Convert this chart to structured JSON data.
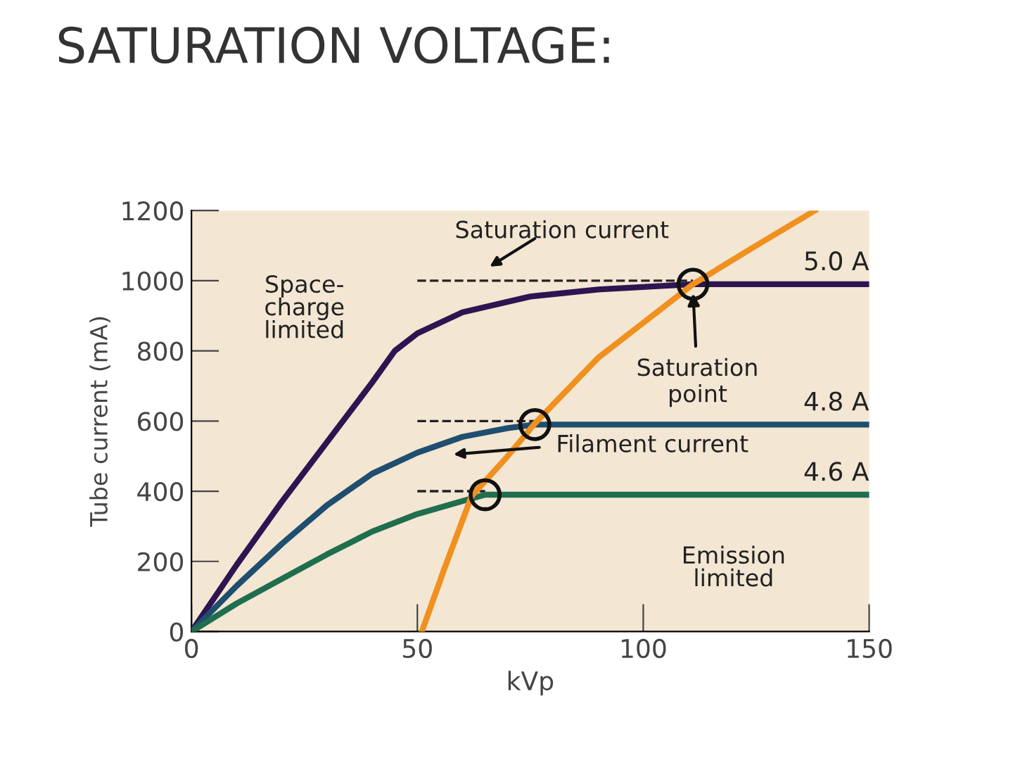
{
  "chart_data": {
    "type": "line",
    "title": "SATURATION VOLTAGE:",
    "xlabel": "kVp",
    "ylabel": "Tube current (mA)",
    "xlim": [
      0,
      150
    ],
    "ylim": [
      0,
      1200
    ],
    "xticks": [
      0,
      50,
      100,
      150
    ],
    "yticks": [
      0,
      200,
      400,
      600,
      800,
      1000,
      1200
    ],
    "grid": false,
    "legend": false,
    "line_style": "solid",
    "marker": "none",
    "series": [
      {
        "name": "5.0 A",
        "color": "#2e1450",
        "x": [
          0,
          10,
          20,
          30,
          40,
          45,
          50,
          60,
          75,
          90,
          111,
          150
        ],
        "values": [
          0,
          190,
          370,
          540,
          710,
          800,
          850,
          910,
          955,
          975,
          990,
          990
        ]
      },
      {
        "name": "4.8 A",
        "color": "#1f4e6e",
        "x": [
          0,
          10,
          20,
          30,
          40,
          50,
          60,
          70,
          76,
          150
        ],
        "values": [
          0,
          130,
          250,
          360,
          450,
          510,
          555,
          580,
          590,
          590
        ]
      },
      {
        "name": "4.6 A",
        "color": "#1f6e4e",
        "x": [
          0,
          10,
          20,
          30,
          40,
          50,
          60,
          65,
          150
        ],
        "values": [
          0,
          80,
          150,
          220,
          285,
          335,
          372,
          390,
          390
        ]
      },
      {
        "color": "#f0901e",
        "x": [
          51,
          56,
          62,
          70,
          76,
          90,
          100,
          111,
          125,
          138
        ],
        "values": [
          0,
          180,
          386,
          500,
          593,
          780,
          880,
          990,
          1100,
          1200
        ]
      },
      {
        "color": "#222222",
        "line_style": "dashed",
        "x": [
          50,
          111
        ],
        "values": [
          1000,
          1000
        ]
      },
      {
        "color": "#222222",
        "line_style": "dashed",
        "x": [
          50,
          76
        ],
        "values": [
          600,
          600
        ]
      },
      {
        "color": "#222222",
        "line_style": "dashed",
        "x": [
          50,
          65
        ],
        "values": [
          400,
          400
        ]
      },
      {
        "type": "scatter",
        "color": "#111111",
        "marker": "circle",
        "x": [
          65,
          76,
          111
        ],
        "values": [
          390,
          590,
          990
        ]
      }
    ],
    "annotations": [
      "Saturation current",
      "Space-\ncharge\nlimited",
      {
        "text": "Saturation\npoint",
        "x": 111,
        "y": 975
      },
      "Filament current",
      "Emission\nlimited"
    ]
  }
}
